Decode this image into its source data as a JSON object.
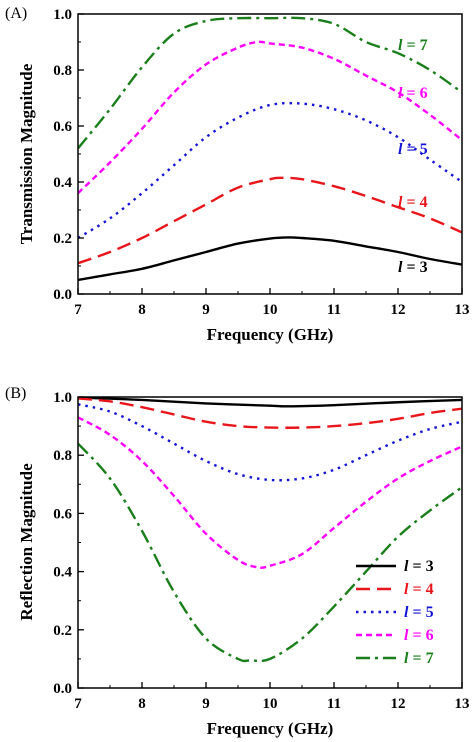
{
  "chart_data": [
    {
      "panel_label": "(A)",
      "type": "line",
      "xlabel": "Frequency (GHz)",
      "ylabel": "Transmission Magnitude",
      "xlim": [
        7,
        13
      ],
      "ylim": [
        0,
        1.0
      ],
      "xticks": [
        "7",
        "8",
        "9",
        "10",
        "11",
        "12",
        "13"
      ],
      "yticks": [
        "0.0",
        "0.2",
        "0.4",
        "0.6",
        "0.8",
        "1.0"
      ],
      "legend_placement": "inline-right",
      "series": [
        {
          "name": "l = 3",
          "label_var": "l",
          "label_val": "= 3",
          "color": "#000000",
          "dash": "solid",
          "x": [
            7,
            7.5,
            8,
            8.5,
            9,
            9.5,
            10,
            10.3,
            10.5,
            11,
            11.5,
            12,
            12.5,
            13
          ],
          "y": [
            0.05,
            0.07,
            0.09,
            0.12,
            0.15,
            0.18,
            0.198,
            0.202,
            0.2,
            0.19,
            0.17,
            0.15,
            0.125,
            0.105
          ]
        },
        {
          "name": "l = 4",
          "label_var": "l",
          "label_val": "= 4",
          "color": "#e8161b",
          "dash": "dash",
          "x": [
            7,
            7.5,
            8,
            8.5,
            9,
            9.5,
            10,
            10.2,
            10.5,
            11,
            11.5,
            12,
            12.5,
            13
          ],
          "y": [
            0.11,
            0.15,
            0.2,
            0.26,
            0.32,
            0.38,
            0.41,
            0.415,
            0.41,
            0.385,
            0.35,
            0.31,
            0.27,
            0.22
          ]
        },
        {
          "name": "l = 5",
          "label_var": "l",
          "label_val": "= 5",
          "color": "#1414d8",
          "dash": "dot",
          "x": [
            7,
            7.5,
            8,
            8.5,
            9,
            9.5,
            10,
            10.5,
            11,
            11.5,
            12,
            12.5,
            13
          ],
          "y": [
            0.2,
            0.27,
            0.36,
            0.46,
            0.56,
            0.63,
            0.675,
            0.68,
            0.66,
            0.62,
            0.56,
            0.48,
            0.4
          ]
        },
        {
          "name": "l = 6",
          "label_var": "l",
          "label_val": "= 6",
          "color": "#ff00ff",
          "dash": "shortdash",
          "x": [
            7,
            7.5,
            8,
            8.5,
            9,
            9.5,
            9.8,
            10,
            10.5,
            11,
            11.5,
            12,
            12.5,
            13
          ],
          "y": [
            0.36,
            0.47,
            0.59,
            0.72,
            0.82,
            0.88,
            0.9,
            0.895,
            0.88,
            0.84,
            0.78,
            0.72,
            0.64,
            0.55
          ]
        },
        {
          "name": "l = 7",
          "label_var": "l",
          "label_val": "= 7",
          "color": "#1a7f1a",
          "dash": "dashdot",
          "x": [
            7,
            7.5,
            8,
            8.5,
            9,
            9.5,
            10,
            10.5,
            11,
            11.5,
            12,
            12.5,
            13
          ],
          "y": [
            0.52,
            0.66,
            0.81,
            0.93,
            0.975,
            0.985,
            0.985,
            0.985,
            0.965,
            0.9,
            0.86,
            0.8,
            0.72
          ]
        }
      ]
    },
    {
      "panel_label": "(B)",
      "type": "line",
      "xlabel": "Frequency (GHz)",
      "ylabel": "Reflection Magnitude",
      "xlim": [
        7,
        13
      ],
      "ylim": [
        0,
        1.0
      ],
      "xticks": [
        "7",
        "8",
        "9",
        "10",
        "11",
        "12",
        "13"
      ],
      "yticks": [
        "0.0",
        "0.2",
        "0.4",
        "0.6",
        "0.8",
        "1.0"
      ],
      "legend_placement": "bottom-right",
      "series": [
        {
          "name": "l = 3",
          "label_var": "l",
          "label_val": "= 3",
          "color": "#000000",
          "dash": "solid",
          "x": [
            7,
            8,
            9,
            10,
            10.3,
            11,
            12,
            13
          ],
          "y": [
            0.998,
            0.99,
            0.978,
            0.97,
            0.968,
            0.972,
            0.982,
            0.99
          ]
        },
        {
          "name": "l = 4",
          "label_var": "l",
          "label_val": "= 4",
          "color": "#e8161b",
          "dash": "dash",
          "x": [
            7,
            7.5,
            8,
            8.5,
            9,
            9.5,
            10,
            10.5,
            11,
            11.5,
            12,
            12.5,
            13
          ],
          "y": [
            0.995,
            0.985,
            0.965,
            0.94,
            0.915,
            0.9,
            0.895,
            0.895,
            0.9,
            0.91,
            0.925,
            0.945,
            0.96
          ]
        },
        {
          "name": "l = 5",
          "label_var": "l",
          "label_val": "= 5",
          "color": "#1414d8",
          "dash": "dot",
          "x": [
            7,
            7.5,
            8,
            8.5,
            9,
            9.5,
            10,
            10.5,
            11,
            11.5,
            12,
            12.5,
            13
          ],
          "y": [
            0.975,
            0.95,
            0.9,
            0.84,
            0.78,
            0.735,
            0.715,
            0.72,
            0.75,
            0.8,
            0.85,
            0.89,
            0.915
          ]
        },
        {
          "name": "l = 6",
          "label_var": "l",
          "label_val": "= 6",
          "color": "#ff00ff",
          "dash": "shortdash",
          "x": [
            7,
            7.5,
            8,
            8.5,
            9,
            9.5,
            9.8,
            10,
            10.5,
            11,
            11.5,
            12,
            12.5,
            13
          ],
          "y": [
            0.93,
            0.87,
            0.78,
            0.66,
            0.53,
            0.44,
            0.415,
            0.42,
            0.46,
            0.55,
            0.64,
            0.72,
            0.78,
            0.83
          ]
        },
        {
          "name": "l = 7",
          "label_var": "l",
          "label_val": "= 7",
          "color": "#1a7f1a",
          "dash": "dashdot",
          "x": [
            7,
            7.5,
            8,
            8.5,
            9,
            9.5,
            9.7,
            10,
            10.5,
            11,
            11.5,
            12,
            12.5,
            13
          ],
          "y": [
            0.84,
            0.72,
            0.54,
            0.33,
            0.17,
            0.1,
            0.095,
            0.1,
            0.17,
            0.28,
            0.4,
            0.52,
            0.61,
            0.69
          ]
        }
      ]
    }
  ]
}
